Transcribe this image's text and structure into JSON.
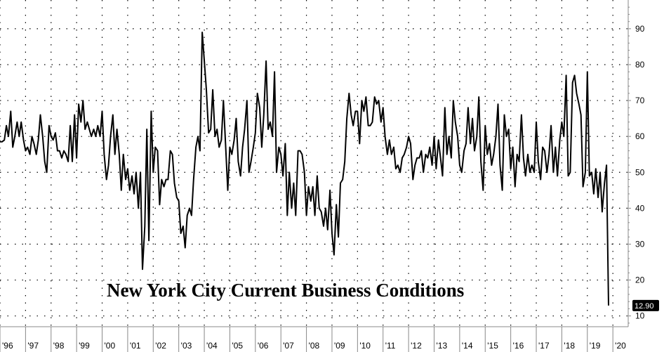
{
  "chart_data": {
    "type": "line",
    "title": "New York City Current Business Conditions",
    "xlabel": "",
    "ylabel": "",
    "x_tick_labels": [
      "'96",
      "'97",
      "'98",
      "'99",
      "'00",
      "'01",
      "'02",
      "'03",
      "'04",
      "'05",
      "'06",
      "'07",
      "'08",
      "'09",
      "'10",
      "'11",
      "'12",
      "'13",
      "'14",
      "'15",
      "'16",
      "'17",
      "'18",
      "'19",
      "'20"
    ],
    "y_tick_labels": [
      "10",
      "20",
      "30",
      "40",
      "50",
      "60",
      "70",
      "80",
      "90"
    ],
    "ylim": [
      7,
      98
    ],
    "xlim": [
      1996.0,
      2020.6
    ],
    "grid": true,
    "last_value_label": "12.90",
    "series": [
      {
        "points": [
          [
            1996.0,
            58.5
          ],
          [
            1996.08,
            58.5
          ],
          [
            1996.17,
            59
          ],
          [
            1996.25,
            63
          ],
          [
            1996.33,
            60
          ],
          [
            1996.42,
            67
          ],
          [
            1996.5,
            57
          ],
          [
            1996.58,
            60
          ],
          [
            1996.67,
            64
          ],
          [
            1996.75,
            60
          ],
          [
            1996.83,
            64
          ],
          [
            1996.92,
            59
          ],
          [
            1997.0,
            56
          ],
          [
            1997.08,
            57
          ],
          [
            1997.17,
            55
          ],
          [
            1997.25,
            60
          ],
          [
            1997.33,
            58
          ],
          [
            1997.42,
            55
          ],
          [
            1997.5,
            59
          ],
          [
            1997.58,
            66
          ],
          [
            1997.67,
            60
          ],
          [
            1997.75,
            53
          ],
          [
            1997.83,
            50
          ],
          [
            1997.92,
            63
          ],
          [
            1998.0,
            60
          ],
          [
            1998.08,
            59
          ],
          [
            1998.17,
            61
          ],
          [
            1998.25,
            56
          ],
          [
            1998.33,
            56
          ],
          [
            1998.42,
            54
          ],
          [
            1998.5,
            56
          ],
          [
            1998.58,
            55
          ],
          [
            1998.67,
            53
          ],
          [
            1998.75,
            63
          ],
          [
            1998.83,
            53
          ],
          [
            1998.92,
            66
          ],
          [
            1999.0,
            54
          ],
          [
            1999.08,
            69
          ],
          [
            1999.17,
            64
          ],
          [
            1999.25,
            70
          ],
          [
            1999.33,
            62
          ],
          [
            1999.42,
            64
          ],
          [
            1999.5,
            62
          ],
          [
            1999.58,
            60
          ],
          [
            1999.67,
            62
          ],
          [
            1999.75,
            60
          ],
          [
            1999.83,
            63
          ],
          [
            1999.92,
            60
          ],
          [
            2000.0,
            67
          ],
          [
            2000.08,
            55
          ],
          [
            2000.17,
            48
          ],
          [
            2000.25,
            52
          ],
          [
            2000.33,
            60
          ],
          [
            2000.42,
            66
          ],
          [
            2000.5,
            55
          ],
          [
            2000.58,
            62
          ],
          [
            2000.67,
            55
          ],
          [
            2000.75,
            45
          ],
          [
            2000.83,
            55
          ],
          [
            2000.92,
            48
          ],
          [
            2001.0,
            51
          ],
          [
            2001.08,
            45
          ],
          [
            2001.17,
            49
          ],
          [
            2001.25,
            44
          ],
          [
            2001.33,
            50
          ],
          [
            2001.42,
            40
          ],
          [
            2001.5,
            50
          ],
          [
            2001.58,
            23
          ],
          [
            2001.67,
            35
          ],
          [
            2001.75,
            62
          ],
          [
            2001.83,
            31
          ],
          [
            2001.92,
            67
          ],
          [
            2002.0,
            50
          ],
          [
            2002.08,
            57
          ],
          [
            2002.17,
            56
          ],
          [
            2002.25,
            41
          ],
          [
            2002.33,
            48
          ],
          [
            2002.42,
            46
          ],
          [
            2002.5,
            48
          ],
          [
            2002.58,
            48
          ],
          [
            2002.67,
            56
          ],
          [
            2002.75,
            55
          ],
          [
            2002.83,
            47
          ],
          [
            2002.92,
            43
          ],
          [
            2003.0,
            42
          ],
          [
            2003.08,
            33
          ],
          [
            2003.17,
            35
          ],
          [
            2003.25,
            29
          ],
          [
            2003.33,
            38
          ],
          [
            2003.42,
            40
          ],
          [
            2003.5,
            38
          ],
          [
            2003.58,
            48
          ],
          [
            2003.67,
            57
          ],
          [
            2003.75,
            60
          ],
          [
            2003.83,
            56
          ],
          [
            2003.92,
            89
          ],
          [
            2004.0,
            81
          ],
          [
            2004.08,
            73
          ],
          [
            2004.17,
            61
          ],
          [
            2004.25,
            62
          ],
          [
            2004.33,
            73
          ],
          [
            2004.42,
            60
          ],
          [
            2004.5,
            62
          ],
          [
            2004.58,
            57
          ],
          [
            2004.67,
            59
          ],
          [
            2004.75,
            70
          ],
          [
            2004.83,
            58
          ],
          [
            2004.92,
            45
          ],
          [
            2005.0,
            57
          ],
          [
            2005.08,
            55
          ],
          [
            2005.17,
            59
          ],
          [
            2005.25,
            65
          ],
          [
            2005.33,
            53
          ],
          [
            2005.42,
            49
          ],
          [
            2005.5,
            57
          ],
          [
            2005.58,
            62
          ],
          [
            2005.67,
            70
          ],
          [
            2005.75,
            50
          ],
          [
            2005.83,
            53
          ],
          [
            2005.92,
            57
          ],
          [
            2006.0,
            61
          ],
          [
            2006.08,
            72
          ],
          [
            2006.17,
            68
          ],
          [
            2006.25,
            57
          ],
          [
            2006.33,
            66
          ],
          [
            2006.42,
            81
          ],
          [
            2006.5,
            62
          ],
          [
            2006.58,
            64
          ],
          [
            2006.67,
            60
          ],
          [
            2006.75,
            78
          ],
          [
            2006.83,
            50
          ],
          [
            2006.92,
            57
          ],
          [
            2007.0,
            55
          ],
          [
            2007.08,
            49
          ],
          [
            2007.17,
            58
          ],
          [
            2007.25,
            38
          ],
          [
            2007.33,
            50
          ],
          [
            2007.42,
            40
          ],
          [
            2007.5,
            47
          ],
          [
            2007.58,
            38
          ],
          [
            2007.67,
            56
          ],
          [
            2007.75,
            56
          ],
          [
            2007.83,
            55
          ],
          [
            2007.92,
            50
          ],
          [
            2008.0,
            38
          ],
          [
            2008.08,
            46
          ],
          [
            2008.17,
            42
          ],
          [
            2008.25,
            46
          ],
          [
            2008.33,
            38
          ],
          [
            2008.42,
            49
          ],
          [
            2008.5,
            40
          ],
          [
            2008.58,
            39
          ],
          [
            2008.67,
            35
          ],
          [
            2008.75,
            40
          ],
          [
            2008.83,
            34
          ],
          [
            2008.92,
            45
          ],
          [
            2009.0,
            33
          ],
          [
            2009.08,
            27
          ],
          [
            2009.17,
            41
          ],
          [
            2009.25,
            32
          ],
          [
            2009.33,
            47
          ],
          [
            2009.42,
            48
          ],
          [
            2009.5,
            53
          ],
          [
            2009.58,
            65
          ],
          [
            2009.67,
            72
          ],
          [
            2009.75,
            66
          ],
          [
            2009.83,
            63
          ],
          [
            2009.92,
            67
          ],
          [
            2010.0,
            67
          ],
          [
            2010.08,
            58
          ],
          [
            2010.17,
            70
          ],
          [
            2010.25,
            67
          ],
          [
            2010.33,
            71
          ],
          [
            2010.42,
            63
          ],
          [
            2010.5,
            63
          ],
          [
            2010.58,
            64
          ],
          [
            2010.67,
            71
          ],
          [
            2010.75,
            69
          ],
          [
            2010.83,
            70
          ],
          [
            2010.92,
            64
          ],
          [
            2011.0,
            68
          ],
          [
            2011.08,
            60
          ],
          [
            2011.17,
            55
          ],
          [
            2011.25,
            59
          ],
          [
            2011.33,
            55
          ],
          [
            2011.42,
            57
          ],
          [
            2011.5,
            51
          ],
          [
            2011.58,
            52
          ],
          [
            2011.67,
            50
          ],
          [
            2011.75,
            54
          ],
          [
            2011.83,
            55
          ],
          [
            2011.92,
            57
          ],
          [
            2012.0,
            60
          ],
          [
            2012.08,
            58
          ],
          [
            2012.17,
            48
          ],
          [
            2012.25,
            52
          ],
          [
            2012.33,
            54
          ],
          [
            2012.42,
            54
          ],
          [
            2012.5,
            56
          ],
          [
            2012.58,
            50
          ],
          [
            2012.67,
            55
          ],
          [
            2012.75,
            54
          ],
          [
            2012.83,
            57
          ],
          [
            2012.92,
            52
          ],
          [
            2013.0,
            60
          ],
          [
            2013.08,
            51
          ],
          [
            2013.17,
            59
          ],
          [
            2013.25,
            54
          ],
          [
            2013.33,
            49
          ],
          [
            2013.42,
            68
          ],
          [
            2013.5,
            55
          ],
          [
            2013.58,
            60
          ],
          [
            2013.67,
            54
          ],
          [
            2013.75,
            70
          ],
          [
            2013.83,
            64
          ],
          [
            2013.92,
            60
          ],
          [
            2014.0,
            52
          ],
          [
            2014.08,
            50
          ],
          [
            2014.17,
            56
          ],
          [
            2014.25,
            58
          ],
          [
            2014.33,
            68
          ],
          [
            2014.42,
            58
          ],
          [
            2014.5,
            65
          ],
          [
            2014.58,
            56
          ],
          [
            2014.67,
            60
          ],
          [
            2014.75,
            71
          ],
          [
            2014.83,
            53
          ],
          [
            2014.92,
            45
          ],
          [
            2015.0,
            63
          ],
          [
            2015.08,
            55
          ],
          [
            2015.17,
            58
          ],
          [
            2015.25,
            52
          ],
          [
            2015.33,
            55
          ],
          [
            2015.42,
            60
          ],
          [
            2015.5,
            69
          ],
          [
            2015.58,
            52
          ],
          [
            2015.67,
            45
          ],
          [
            2015.75,
            66
          ],
          [
            2015.83,
            60
          ],
          [
            2015.92,
            62
          ],
          [
            2016.0,
            51
          ],
          [
            2016.08,
            57
          ],
          [
            2016.17,
            46
          ],
          [
            2016.25,
            55
          ],
          [
            2016.33,
            53
          ],
          [
            2016.42,
            66
          ],
          [
            2016.5,
            54
          ],
          [
            2016.58,
            49
          ],
          [
            2016.67,
            55
          ],
          [
            2016.75,
            50
          ],
          [
            2016.83,
            52
          ],
          [
            2016.92,
            50
          ],
          [
            2017.0,
            64
          ],
          [
            2017.08,
            53
          ],
          [
            2017.17,
            48
          ],
          [
            2017.25,
            57
          ],
          [
            2017.33,
            56
          ],
          [
            2017.42,
            50
          ],
          [
            2017.5,
            55
          ],
          [
            2017.58,
            63
          ],
          [
            2017.67,
            50
          ],
          [
            2017.75,
            57
          ],
          [
            2017.83,
            49
          ],
          [
            2017.92,
            59
          ],
          [
            2018.0,
            64
          ],
          [
            2018.08,
            60
          ],
          [
            2018.17,
            77
          ],
          [
            2018.25,
            49
          ],
          [
            2018.33,
            50
          ],
          [
            2018.42,
            75
          ],
          [
            2018.5,
            77
          ],
          [
            2018.58,
            72
          ],
          [
            2018.67,
            69
          ],
          [
            2018.75,
            66
          ],
          [
            2018.83,
            46
          ],
          [
            2018.92,
            50
          ],
          [
            2019.0,
            78
          ],
          [
            2019.08,
            49
          ],
          [
            2019.17,
            50
          ],
          [
            2019.25,
            44
          ],
          [
            2019.33,
            51
          ],
          [
            2019.42,
            43
          ],
          [
            2019.5,
            50
          ],
          [
            2019.58,
            39
          ],
          [
            2019.67,
            47
          ],
          [
            2019.75,
            52
          ],
          [
            2019.83,
            12.9
          ]
        ]
      }
    ]
  },
  "colors": {
    "line": "#000000",
    "grid": "#000000",
    "badge": "#000000",
    "axis": "#777777"
  }
}
